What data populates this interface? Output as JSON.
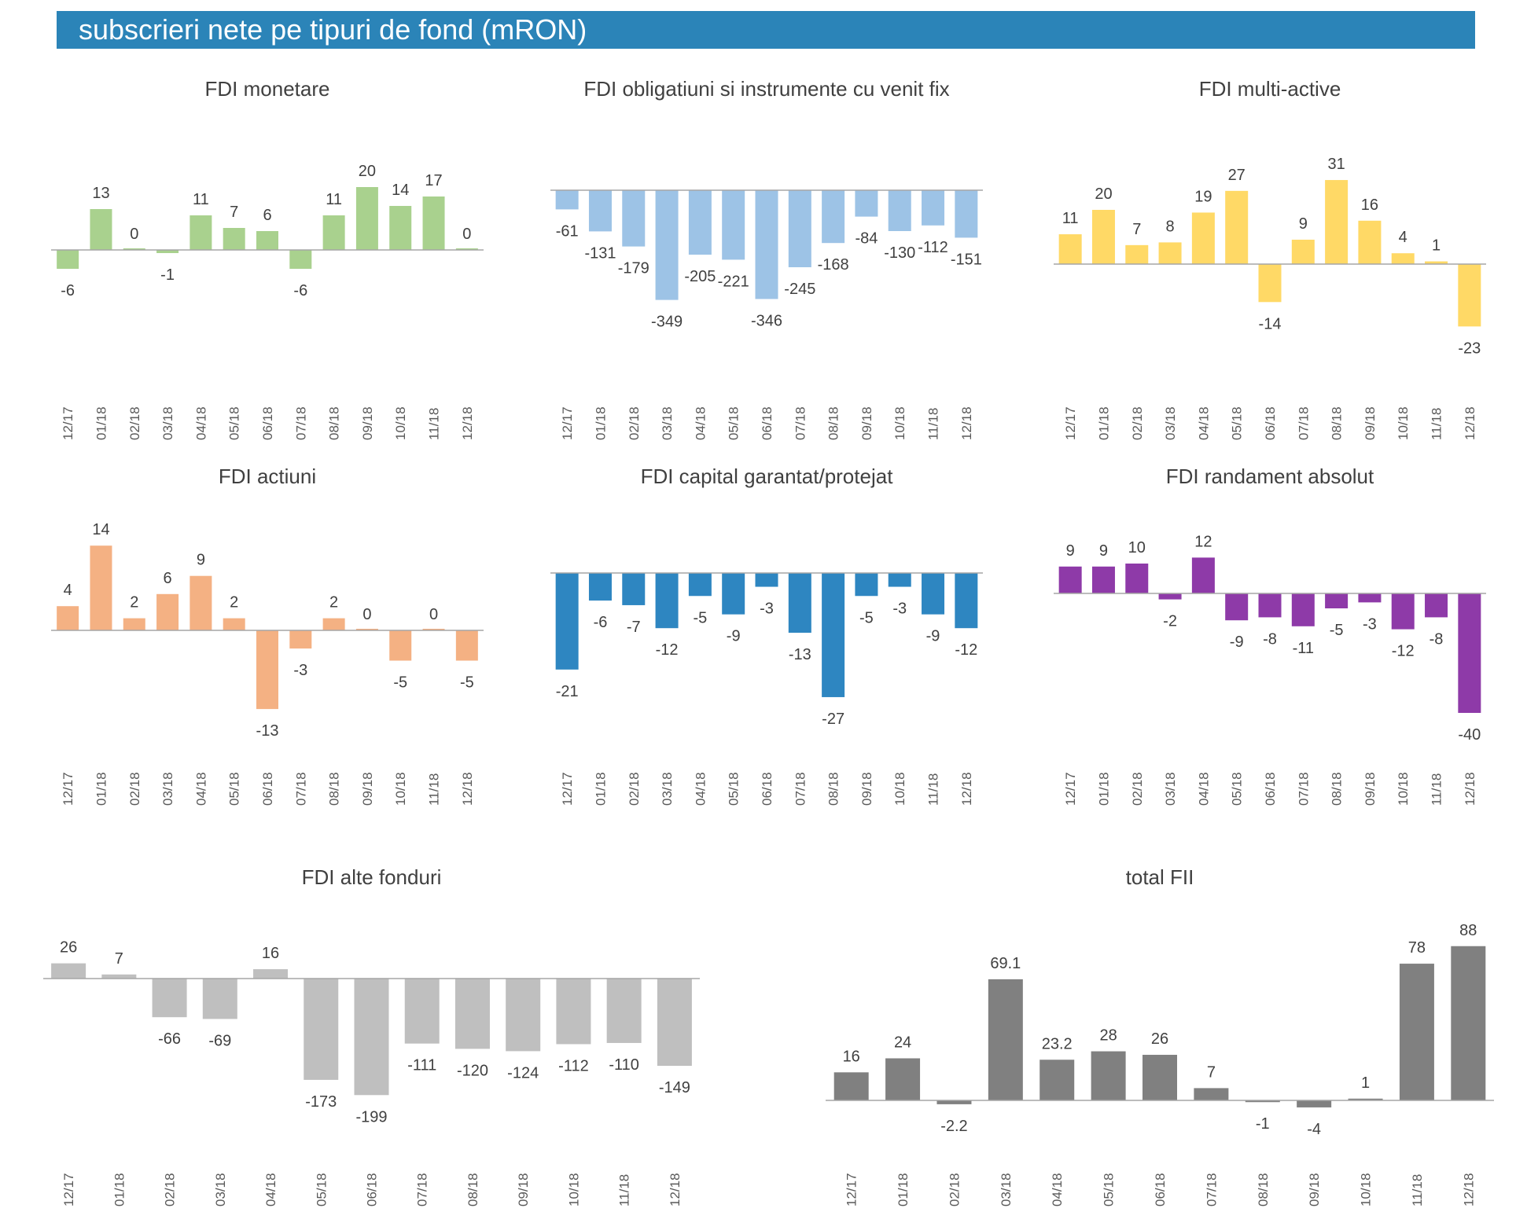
{
  "header": {
    "title": "subscrieri nete pe tipuri de fond (mRON)"
  },
  "chart_data": [
    {
      "type": "bar",
      "title": "FDI monetare",
      "color": "#a9d18e",
      "categories": [
        "12/17",
        "01/18",
        "02/18",
        "03/18",
        "04/18",
        "05/18",
        "06/18",
        "07/18",
        "08/18",
        "09/18",
        "10/18",
        "11/18",
        "12/18"
      ],
      "values": [
        -6,
        13,
        0,
        -1,
        11,
        7,
        6,
        -6,
        11,
        20,
        14,
        17,
        0
      ],
      "labels": [
        "-6",
        "13",
        "0",
        "-1",
        "11",
        "7",
        "6",
        "-6",
        "11",
        "20",
        "14",
        "17",
        "0"
      ]
    },
    {
      "type": "bar",
      "title": "FDI obligatiuni si instrumente cu venit fix",
      "color": "#9dc3e6",
      "categories": [
        "12/17",
        "01/18",
        "02/18",
        "03/18",
        "04/18",
        "05/18",
        "06/18",
        "07/18",
        "08/18",
        "09/18",
        "10/18",
        "11/18",
        "12/18"
      ],
      "values": [
        -61,
        -131,
        -179,
        -349,
        -205,
        -221,
        -346,
        -245,
        -168,
        -84,
        -130,
        -112,
        -151
      ],
      "labels": [
        "-61",
        "-131",
        "-179",
        "-349",
        "-205",
        "-221",
        "-346",
        "-245",
        "-168",
        "-84",
        "-130",
        "-112",
        "-151"
      ]
    },
    {
      "type": "bar",
      "title": "FDI multi-active",
      "color": "#ffd966",
      "categories": [
        "12/17",
        "01/18",
        "02/18",
        "03/18",
        "04/18",
        "05/18",
        "06/18",
        "07/18",
        "08/18",
        "09/18",
        "10/18",
        "11/18",
        "12/18"
      ],
      "values": [
        11,
        20,
        7,
        8,
        19,
        27,
        -14,
        9,
        31,
        16,
        4,
        1,
        -23
      ],
      "labels": [
        "11",
        "20",
        "7",
        "8",
        "19",
        "27",
        "-14",
        "9",
        "31",
        "16",
        "4",
        "1",
        "-23"
      ]
    },
    {
      "type": "bar",
      "title": "FDI actiuni",
      "color": "#f4b183",
      "categories": [
        "12/17",
        "01/18",
        "02/18",
        "03/18",
        "04/18",
        "05/18",
        "06/18",
        "07/18",
        "08/18",
        "09/18",
        "10/18",
        "11/18",
        "12/18"
      ],
      "values": [
        4,
        14,
        2,
        6,
        9,
        2,
        -13,
        -3,
        2,
        0,
        -5,
        0,
        -5
      ],
      "labels": [
        "4",
        "14",
        "2",
        "6",
        "9",
        "2",
        "-13",
        "-3",
        "2",
        "0",
        "-5",
        "0",
        "-5"
      ]
    },
    {
      "type": "bar",
      "title": "FDI capital garantat/protejat",
      "color": "#2e86c1",
      "categories": [
        "12/17",
        "01/18",
        "02/18",
        "03/18",
        "04/18",
        "05/18",
        "06/18",
        "07/18",
        "08/18",
        "09/18",
        "10/18",
        "11/18",
        "12/18"
      ],
      "values": [
        -21,
        -6,
        -7,
        -12,
        -5,
        -9,
        -3,
        -13,
        -27,
        -5,
        -3,
        -9,
        -12
      ],
      "labels": [
        "-21",
        "-6",
        "-7",
        "-12",
        "-5",
        "-9",
        "-3",
        "-13",
        "-27",
        "-5",
        "-3",
        "-9",
        "-12"
      ]
    },
    {
      "type": "bar",
      "title": "FDI randament absolut",
      "color": "#8e3aa8",
      "categories": [
        "12/17",
        "01/18",
        "02/18",
        "03/18",
        "04/18",
        "05/18",
        "06/18",
        "07/18",
        "08/18",
        "09/18",
        "10/18",
        "11/18",
        "12/18"
      ],
      "values": [
        9,
        9,
        10,
        -2,
        12,
        -9,
        -8,
        -11,
        -5,
        -3,
        -12,
        -8,
        -40
      ],
      "labels": [
        "9",
        "9",
        "10",
        "-2",
        "12",
        "-9",
        "-8",
        "-11",
        "-5",
        "-3",
        "-12",
        "-8",
        "-40"
      ]
    },
    {
      "type": "bar",
      "title": "FDI alte fonduri",
      "color": "#bfbfbf",
      "categories": [
        "12/17",
        "01/18",
        "02/18",
        "03/18",
        "04/18",
        "05/18",
        "06/18",
        "07/18",
        "08/18",
        "09/18",
        "10/18",
        "11/18",
        "12/18"
      ],
      "values": [
        26,
        7,
        -66,
        -69,
        16,
        -173,
        -199,
        -111,
        -120,
        -124,
        -112,
        -110,
        -149
      ],
      "labels": [
        "26",
        "7",
        "-66",
        "-69",
        "16",
        "-173",
        "-199",
        "-111",
        "-120",
        "-124",
        "-112",
        "-110",
        "-149"
      ]
    },
    {
      "type": "bar",
      "title": "total FII",
      "color": "#808080",
      "categories": [
        "12/17",
        "01/18",
        "02/18",
        "03/18",
        "04/18",
        "05/18",
        "06/18",
        "07/18",
        "08/18",
        "09/18",
        "10/18",
        "11/18",
        "12/18"
      ],
      "values": [
        16,
        24,
        -2.2,
        69.1,
        23.2,
        28,
        26,
        7,
        -1,
        -4,
        1,
        78,
        88
      ],
      "labels": [
        "16",
        "24",
        "-2.2",
        "69.1",
        "23.2",
        "28",
        "26",
        "7",
        "-1",
        "-4",
        "1",
        "78",
        "88"
      ]
    }
  ]
}
